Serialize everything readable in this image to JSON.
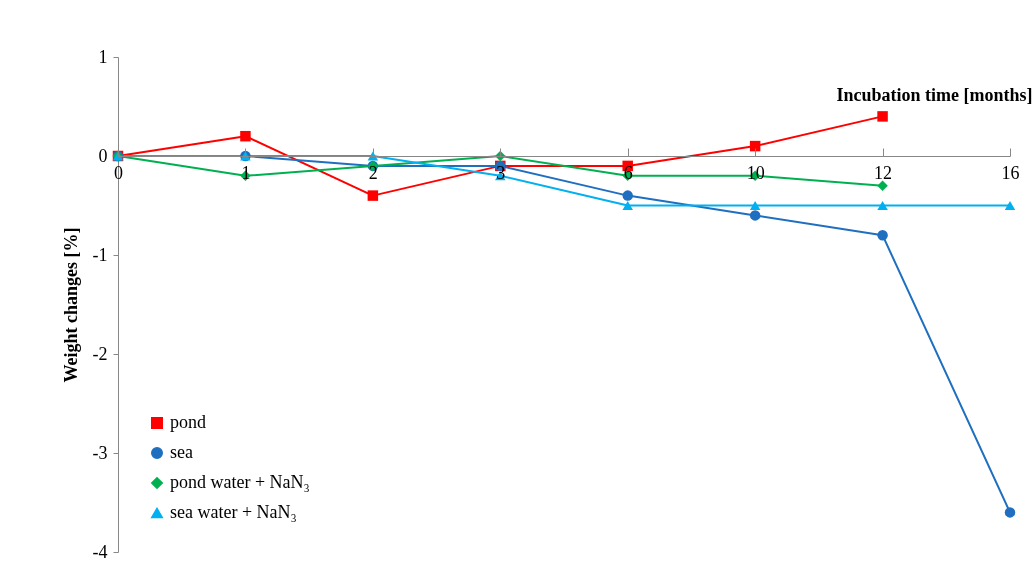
{
  "chart_data": {
    "type": "line",
    "xlabel": "Incubation time [months]",
    "ylabel": "Weight changes [%]",
    "categories": [
      "0",
      "1",
      "2",
      "3",
      "6",
      "10",
      "12",
      "16"
    ],
    "ylim": [
      -4,
      1
    ],
    "yticks": [
      -4,
      -3,
      -2,
      -1,
      0,
      1
    ],
    "grid": false,
    "legend": "bottom left",
    "series": [
      {
        "name": "pond",
        "color": "#ff0000",
        "marker": "square",
        "values": [
          0,
          0.2,
          -0.4,
          -0.1,
          -0.1,
          0.1,
          0.4,
          null
        ]
      },
      {
        "name": "sea",
        "color": "#1f6fc0",
        "marker": "circle",
        "values": [
          0,
          0,
          -0.1,
          -0.1,
          -0.4,
          -0.6,
          -0.8,
          -3.6
        ]
      },
      {
        "name": "pond water + NaN₃",
        "color": "#00b050",
        "marker": "diamond",
        "values": [
          0,
          -0.2,
          -0.1,
          0,
          -0.2,
          -0.2,
          -0.3,
          null
        ]
      },
      {
        "name": "sea water + NaN₃",
        "color": "#00b0f0",
        "marker": "triangle",
        "values": [
          0,
          0,
          0,
          -0.2,
          -0.5,
          -0.5,
          -0.5,
          -0.5
        ]
      }
    ]
  }
}
